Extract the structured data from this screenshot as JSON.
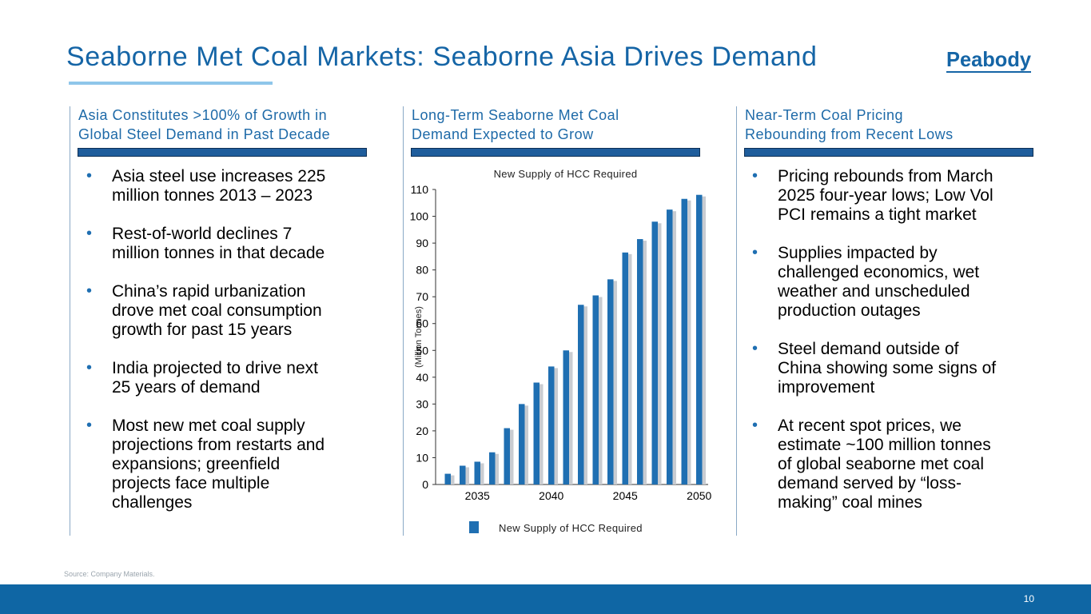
{
  "slide": {
    "title": "Seaborne Met Coal Markets: Seaborne Asia Drives Demand",
    "logo_text": "Peabody",
    "source": "Source: Company Materials.",
    "page_number": "10"
  },
  "columns": [
    {
      "heading": [
        "Asia Constitutes >100% of Growth in",
        "Global Steel Demand in Past Decade"
      ],
      "bullets": [
        [
          "Asia steel use increases 225",
          "million tonnes 2013 – 2023"
        ],
        [
          "Rest-of-world declines 7",
          "million tonnes in that decade"
        ],
        [
          "China’s rapid urbanization",
          "drove met coal consumption",
          "growth for past 15 years"
        ],
        [
          "India projected to drive next",
          "25 years of demand"
        ],
        [
          "Most new met coal supply",
          "projections from restarts and",
          "expansions; greenfield",
          "projects face multiple",
          "challenges"
        ]
      ]
    },
    {
      "heading": [
        "Long-Term Seaborne Met Coal",
        "Demand Expected to Grow"
      ]
    },
    {
      "heading": [
        "Near-Term Coal Pricing",
        "Rebounding from Recent Lows"
      ],
      "bullets": [
        [
          "Pricing rebounds from March",
          "2025 four-year lows; Low Vol",
          "PCI remains a tight market"
        ],
        [
          "Supplies impacted by",
          "challenged economics, wet",
          "weather and unscheduled",
          "production outages"
        ],
        [
          "Steel demand outside of",
          "China showing some signs of",
          "improvement"
        ],
        [
          "At recent spot prices, we",
          "estimate ~100 million tonnes",
          "of global seaborne met coal",
          "demand served by “loss-",
          "making” coal mines"
        ]
      ]
    }
  ],
  "chart_data": {
    "type": "bar",
    "title": "New Supply of HCC Required",
    "ylabel": "(Million Tonnes)",
    "xlabel": "",
    "ylim": [
      0,
      110
    ],
    "yticks": [
      0,
      10,
      20,
      30,
      40,
      50,
      60,
      70,
      80,
      90,
      100,
      110
    ],
    "xtick_labels": [
      "2035",
      "2040",
      "2045",
      "2050"
    ],
    "xtick_years": [
      2035,
      2040,
      2045,
      2050
    ],
    "categories": [
      2033,
      2034,
      2035,
      2036,
      2037,
      2038,
      2039,
      2040,
      2041,
      2042,
      2043,
      2044,
      2045,
      2046,
      2047,
      2048,
      2049,
      2050
    ],
    "series": [
      {
        "name": "New Supply of HCC Required",
        "color": "#1f6fb2",
        "values": [
          4,
          7,
          8.5,
          12,
          21,
          30,
          38,
          44,
          50,
          67,
          70.5,
          76.5,
          86.5,
          91.5,
          98,
          102.5,
          106.5,
          108
        ]
      }
    ],
    "legend": "bottom"
  },
  "colors": {
    "accent": "#1565a6",
    "bar": "#1f6fb2",
    "footer": "#0f66a4"
  }
}
